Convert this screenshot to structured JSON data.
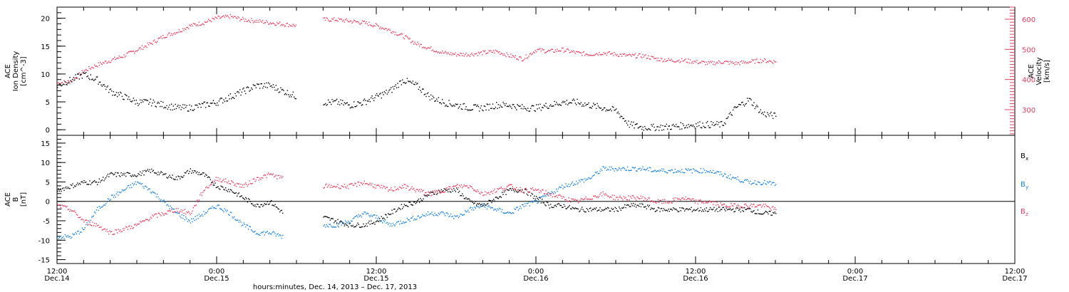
{
  "chart_data": [
    {
      "type": "scatter",
      "panel": "top",
      "ylabel_left": [
        "ACE",
        "Ion Density",
        "[cm^-3]"
      ],
      "ylabel_right": [
        "ACE",
        "Velocity",
        "[km/s]"
      ],
      "ylim_left": [
        -1,
        22
      ],
      "ylim_right": [
        215,
        640
      ],
      "yticks_left": [
        "0",
        "5",
        "10",
        "15",
        "20"
      ],
      "yticks_right": [
        "300",
        "400",
        "500",
        "600"
      ],
      "colors": {
        "density": "#000000",
        "velocity": "#e8405f"
      },
      "series": [
        {
          "axis": "left",
          "color": "#000000",
          "points": [
            [
              0,
              8
            ],
            [
              1,
              9
            ],
            [
              2,
              10
            ],
            [
              3,
              9
            ],
            [
              4,
              7
            ],
            [
              5,
              6
            ],
            [
              6,
              5
            ],
            [
              7,
              5
            ],
            [
              8,
              4.5
            ],
            [
              9,
              4
            ],
            [
              10,
              4
            ],
            [
              11,
              4.5
            ],
            [
              12,
              5
            ],
            [
              13,
              6
            ],
            [
              14,
              7
            ],
            [
              15,
              8
            ],
            [
              16,
              8
            ],
            [
              17,
              7
            ],
            [
              18,
              6
            ],
            [
              20,
              5
            ],
            [
              21,
              5
            ],
            [
              22,
              4.5
            ],
            [
              23,
              5
            ],
            [
              24,
              6
            ],
            [
              25,
              7
            ],
            [
              26,
              9
            ],
            [
              27,
              8
            ],
            [
              28,
              6
            ],
            [
              29,
              5
            ],
            [
              30,
              4.5
            ],
            [
              31,
              4
            ],
            [
              32,
              4
            ],
            [
              33,
              4.5
            ],
            [
              34,
              4.5
            ],
            [
              35,
              4
            ],
            [
              36,
              4
            ],
            [
              37,
              4.5
            ],
            [
              38,
              5
            ],
            [
              39,
              5
            ],
            [
              40,
              4.5
            ],
            [
              41,
              4
            ],
            [
              42,
              3.5
            ],
            [
              43,
              1
            ],
            [
              44,
              0.5
            ],
            [
              45,
              0.5
            ],
            [
              46,
              0.6
            ],
            [
              47,
              0.8
            ],
            [
              48,
              1
            ],
            [
              49,
              1
            ],
            [
              50,
              1
            ],
            [
              51,
              4
            ],
            [
              52,
              5.5
            ],
            [
              53,
              3
            ],
            [
              54,
              2.5
            ]
          ]
        },
        {
          "axis": "right",
          "color": "#e8405f",
          "points": [
            [
              0,
              390
            ],
            [
              1,
              395
            ],
            [
              2,
              430
            ],
            [
              3,
              450
            ],
            [
              4,
              465
            ],
            [
              5,
              480
            ],
            [
              6,
              500
            ],
            [
              7,
              520
            ],
            [
              8,
              545
            ],
            [
              9,
              560
            ],
            [
              10,
              580
            ],
            [
              11,
              590
            ],
            [
              12,
              605
            ],
            [
              13,
              610
            ],
            [
              14,
              600
            ],
            [
              15,
              595
            ],
            [
              16,
              590
            ],
            [
              17,
              585
            ],
            [
              18,
              580
            ],
            [
              20,
              600
            ],
            [
              21,
              600
            ],
            [
              22,
              595
            ],
            [
              23,
              590
            ],
            [
              24,
              580
            ],
            [
              25,
              565
            ],
            [
              26,
              545
            ],
            [
              27,
              520
            ],
            [
              28,
              505
            ],
            [
              29,
              490
            ],
            [
              30,
              485
            ],
            [
              31,
              485
            ],
            [
              32,
              490
            ],
            [
              33,
              495
            ],
            [
              34,
              480
            ],
            [
              35,
              470
            ],
            [
              36,
              500
            ],
            [
              37,
              495
            ],
            [
              38,
              500
            ],
            [
              39,
              490
            ],
            [
              40,
              485
            ],
            [
              41,
              490
            ],
            [
              42,
              485
            ],
            [
              43,
              480
            ],
            [
              44,
              480
            ],
            [
              45,
              470
            ],
            [
              46,
              465
            ],
            [
              47,
              465
            ],
            [
              48,
              460
            ],
            [
              49,
              455
            ],
            [
              50,
              460
            ],
            [
              51,
              455
            ],
            [
              52,
              460
            ],
            [
              53,
              465
            ],
            [
              54,
              460
            ]
          ]
        }
      ]
    },
    {
      "type": "scatter",
      "panel": "bottom",
      "ylabel_left": [
        "ACE",
        "B",
        "[nT]"
      ],
      "ylim": [
        -16,
        17
      ],
      "yticks": [
        "-15",
        "-10",
        "-5",
        "0",
        "5",
        "10",
        "15"
      ],
      "legend": [
        "B",
        "B",
        "B"
      ],
      "legend_sub": [
        "x",
        "y",
        "z"
      ],
      "colors": {
        "bx": "#000000",
        "by": "#1a82dd",
        "bz": "#e8405f"
      },
      "series": [
        {
          "name": "Bx",
          "color": "#000000",
          "points": [
            [
              0,
              3
            ],
            [
              1,
              4
            ],
            [
              2,
              5
            ],
            [
              3,
              5
            ],
            [
              4,
              7
            ],
            [
              5,
              7
            ],
            [
              6,
              7
            ],
            [
              7,
              8
            ],
            [
              8,
              7
            ],
            [
              9,
              6
            ],
            [
              10,
              8
            ],
            [
              11,
              7
            ],
            [
              12,
              4
            ],
            [
              13,
              3
            ],
            [
              14,
              1
            ],
            [
              15,
              -1
            ],
            [
              16,
              0
            ],
            [
              17,
              -3
            ],
            [
              20,
              -4
            ],
            [
              21,
              -5
            ],
            [
              22,
              -6
            ],
            [
              23,
              -6
            ],
            [
              24,
              -5
            ],
            [
              25,
              -3
            ],
            [
              26,
              -1
            ],
            [
              27,
              0
            ],
            [
              28,
              2
            ],
            [
              29,
              3
            ],
            [
              30,
              3
            ],
            [
              31,
              0
            ],
            [
              32,
              -1
            ],
            [
              33,
              1
            ],
            [
              34,
              3
            ],
            [
              35,
              3
            ],
            [
              36,
              1
            ],
            [
              37,
              -1
            ],
            [
              38,
              -1
            ],
            [
              39,
              -2
            ],
            [
              40,
              -2
            ],
            [
              41,
              -2
            ],
            [
              42,
              -2
            ],
            [
              43,
              -1
            ],
            [
              44,
              -1
            ],
            [
              45,
              -2
            ],
            [
              46,
              -2
            ],
            [
              47,
              -2
            ],
            [
              48,
              -2
            ],
            [
              49,
              -2
            ],
            [
              50,
              -2
            ],
            [
              51,
              -2
            ],
            [
              52,
              -2
            ],
            [
              53,
              -3
            ],
            [
              54,
              -3
            ]
          ]
        },
        {
          "name": "By",
          "color": "#1a82dd",
          "points": [
            [
              0,
              -9
            ],
            [
              1,
              -9
            ],
            [
              2,
              -7
            ],
            [
              3,
              -2
            ],
            [
              4,
              1
            ],
            [
              5,
              3
            ],
            [
              6,
              5
            ],
            [
              7,
              3
            ],
            [
              8,
              0
            ],
            [
              9,
              -3
            ],
            [
              10,
              -5
            ],
            [
              11,
              -3
            ],
            [
              12,
              -1
            ],
            [
              13,
              -3
            ],
            [
              14,
              -6
            ],
            [
              15,
              -8
            ],
            [
              16,
              -8
            ],
            [
              17,
              -9
            ],
            [
              20,
              -6
            ],
            [
              21,
              -6
            ],
            [
              22,
              -5
            ],
            [
              23,
              -3
            ],
            [
              24,
              -4
            ],
            [
              25,
              -6
            ],
            [
              26,
              -5
            ],
            [
              27,
              -4
            ],
            [
              28,
              -3
            ],
            [
              29,
              -3
            ],
            [
              30,
              -4
            ],
            [
              31,
              -2
            ],
            [
              32,
              -1
            ],
            [
              33,
              -2
            ],
            [
              34,
              -3
            ],
            [
              35,
              -1
            ],
            [
              36,
              0
            ],
            [
              37,
              2
            ],
            [
              38,
              4
            ],
            [
              39,
              5
            ],
            [
              40,
              6
            ],
            [
              41,
              8.5
            ],
            [
              42,
              8.5
            ],
            [
              43,
              8.5
            ],
            [
              44,
              8.5
            ],
            [
              45,
              8
            ],
            [
              46,
              8
            ],
            [
              47,
              8
            ],
            [
              48,
              8
            ],
            [
              49,
              8
            ],
            [
              50,
              7
            ],
            [
              51,
              6
            ],
            [
              52,
              5
            ],
            [
              53,
              5
            ],
            [
              54,
              4.5
            ]
          ]
        },
        {
          "name": "Bz",
          "color": "#e8405f",
          "points": [
            [
              0,
              -1
            ],
            [
              1,
              -2
            ],
            [
              2,
              -5
            ],
            [
              3,
              -6
            ],
            [
              4,
              -8
            ],
            [
              5,
              -7
            ],
            [
              6,
              -6
            ],
            [
              7,
              -4
            ],
            [
              8,
              -3
            ],
            [
              9,
              -2
            ],
            [
              10,
              -3
            ],
            [
              11,
              3
            ],
            [
              12,
              6
            ],
            [
              13,
              5
            ],
            [
              14,
              4
            ],
            [
              15,
              6
            ],
            [
              16,
              7
            ],
            [
              17,
              6
            ],
            [
              20,
              4
            ],
            [
              21,
              4
            ],
            [
              22,
              4
            ],
            [
              23,
              5
            ],
            [
              24,
              4
            ],
            [
              25,
              3
            ],
            [
              26,
              4
            ],
            [
              27,
              3
            ],
            [
              28,
              2
            ],
            [
              29,
              3
            ],
            [
              30,
              4
            ],
            [
              31,
              4
            ],
            [
              32,
              2
            ],
            [
              33,
              3
            ],
            [
              34,
              4
            ],
            [
              35,
              3
            ],
            [
              36,
              3
            ],
            [
              37,
              2
            ],
            [
              38,
              1
            ],
            [
              39,
              0
            ],
            [
              40,
              1
            ],
            [
              41,
              2
            ],
            [
              42,
              1
            ],
            [
              43,
              1
            ],
            [
              44,
              1
            ],
            [
              45,
              0
            ],
            [
              46,
              0
            ],
            [
              47,
              1
            ],
            [
              48,
              0
            ],
            [
              49,
              0
            ],
            [
              50,
              -1
            ],
            [
              51,
              -1
            ],
            [
              52,
              -1
            ],
            [
              53,
              -1
            ],
            [
              54,
              -2
            ]
          ]
        }
      ]
    }
  ],
  "x_axis": {
    "xlabel": "hours:minutes, Dec. 14, 2013 – Dec. 17, 2013",
    "ticks": [
      {
        "time": "12:00",
        "date": "Dec.14"
      },
      {
        "time": "0:00",
        "date": "Dec.15"
      },
      {
        "time": "12:00",
        "date": "Dec.15"
      },
      {
        "time": "0:00",
        "date": "Dec.16"
      },
      {
        "time": "12:00",
        "date": "Dec.16"
      },
      {
        "time": "0:00",
        "date": "Dec.17"
      },
      {
        "time": "12:00",
        "date": "Dec.17"
      }
    ]
  }
}
